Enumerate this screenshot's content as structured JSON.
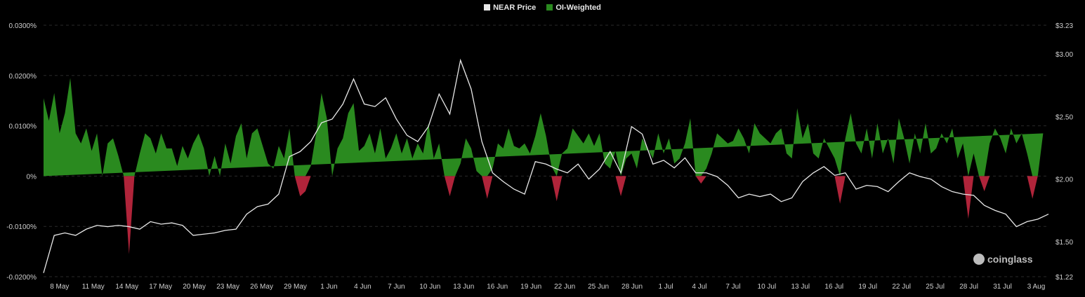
{
  "legend": {
    "price_label": "NEAR Price",
    "funding_label": "OI-Weighted"
  },
  "watermark": "coinglass",
  "colors": {
    "background": "#000000",
    "positive": "#2a8a1f",
    "negative": "#b0243a",
    "price_line": "#e8e8e8",
    "grid": "#2a2a2a"
  },
  "chart_data": {
    "type": "area",
    "grid": true,
    "legend_position": "top-center",
    "x_tick_labels": [
      "8 May",
      "11 May",
      "14 May",
      "17 May",
      "20 May",
      "23 May",
      "26 May",
      "29 May",
      "1 Jun",
      "4 Jun",
      "7 Jun",
      "10 Jun",
      "13 Jun",
      "16 Jun",
      "19 Jun",
      "22 Jun",
      "25 Jun",
      "28 Jun",
      "1 Jul",
      "4 Jul",
      "7 Jul",
      "10 Jul",
      "13 Jul",
      "16 Jul",
      "19 Jul",
      "22 Jul",
      "25 Jul",
      "28 Jul",
      "31 Jul",
      "3 Aug"
    ],
    "y_left": {
      "ticks": [
        "0.0300%",
        "0.0200%",
        "0.0100%",
        "0%",
        "-0.0100%",
        "-0.0200%"
      ],
      "range": [
        -0.02,
        0.03
      ]
    },
    "y_right": {
      "ticks": [
        "$3.23",
        "$3.00",
        "$2.50",
        "$2.00",
        "$1.50",
        "$1.22"
      ],
      "range": [
        1.22,
        3.23
      ]
    },
    "series": [
      {
        "name": "OI-Weighted",
        "axis": "left",
        "unit": "%",
        "day_offset": [
          0,
          0.5,
          1,
          1.5,
          2,
          2.5,
          3,
          3.5,
          4,
          4.5,
          5,
          5.5,
          6,
          6.5,
          7,
          7.5,
          8,
          8.5,
          9,
          9.5,
          10,
          10.5,
          11,
          11.5,
          12,
          12.5,
          13,
          13.5,
          14,
          14.5,
          15,
          15.5,
          16,
          16.5,
          17,
          17.5,
          18,
          18.5,
          19,
          19.5,
          20,
          20.5,
          21,
          21.5,
          22,
          22.5,
          23,
          23.5,
          24,
          24.5,
          25,
          25.5,
          26,
          26.5,
          27,
          27.5,
          28,
          28.5,
          29,
          29.5,
          30,
          30.5,
          31,
          31.5,
          32,
          32.5,
          33,
          33.5,
          34,
          34.5,
          35,
          35.5,
          36,
          36.5,
          37,
          37.5,
          38,
          38.5,
          39,
          39.5,
          40,
          40.5,
          41,
          41.5,
          42,
          42.5,
          43,
          43.5,
          44,
          44.5,
          45,
          45.5,
          46,
          46.5,
          47,
          47.5,
          48,
          48.5,
          49,
          49.5,
          50,
          50.5,
          51,
          51.5,
          52,
          52.5,
          53,
          53.5,
          54,
          54.5,
          55,
          55.5,
          56,
          56.5,
          57,
          57.5,
          58,
          58.5,
          59,
          59.5,
          60,
          60.5,
          61,
          61.5,
          62,
          62.5,
          63,
          63.5,
          64,
          64.5,
          65,
          65.5,
          66,
          66.5,
          67,
          67.5,
          68,
          68.5,
          69,
          69.5,
          70,
          70.5,
          71,
          71.5,
          72,
          72.5,
          73,
          73.5,
          74,
          74.5,
          75,
          75.5,
          76,
          76.5,
          77,
          77.5,
          78,
          78.5,
          79,
          79.5,
          80,
          80.5,
          81,
          81.5,
          82,
          82.5,
          83,
          83.5,
          84,
          84.5,
          85,
          85.5,
          86,
          86.5,
          87,
          87.5,
          88,
          88.5,
          89,
          89.5,
          90,
          90.5,
          91,
          91.5,
          92,
          92.5,
          93,
          93.5
        ],
        "values": [
          0.0155,
          0.011,
          0.0165,
          0.0085,
          0.0125,
          0.0195,
          0.0085,
          0.0065,
          0.0095,
          0.005,
          0.0085,
          0.0,
          0.0065,
          0.0075,
          0.004,
          0.0,
          -0.0155,
          0.0,
          0.0045,
          0.0085,
          0.0075,
          0.0045,
          0.0085,
          0.0055,
          0.0055,
          0.002,
          0.006,
          0.0035,
          0.0065,
          0.0085,
          0.0055,
          0.0,
          0.004,
          0.0,
          0.0065,
          0.0025,
          0.008,
          0.0105,
          0.0035,
          0.0085,
          0.0095,
          0.006,
          0.0025,
          0.0015,
          0.006,
          0.0035,
          0.0095,
          0.0,
          -0.004,
          -0.003,
          0.002,
          0.0085,
          0.0165,
          0.0115,
          0.0,
          0.0055,
          0.0075,
          0.0125,
          0.0145,
          0.005,
          0.006,
          0.0085,
          0.0045,
          0.0095,
          0.0035,
          0.0055,
          0.0085,
          0.0045,
          0.0075,
          0.0035,
          0.0065,
          0.0045,
          0.0105,
          0.0035,
          0.0065,
          0.0,
          -0.004,
          0.0,
          0.0025,
          0.0075,
          0.0055,
          0.001,
          0.0,
          -0.0045,
          0.0015,
          0.0065,
          0.0055,
          0.0095,
          0.006,
          0.0055,
          0.0065,
          0.0045,
          0.008,
          0.0125,
          0.008,
          0.002,
          -0.005,
          0.0045,
          0.0055,
          0.0095,
          0.008,
          0.0065,
          0.0085,
          0.006,
          0.0085,
          0.0025,
          0.0015,
          0.005,
          -0.004,
          0.0035,
          0.0045,
          0.0015,
          0.0075,
          0.0055,
          0.0035,
          0.0085,
          0.0045,
          0.0075,
          0.0025,
          0.0035,
          0.0065,
          0.0115,
          0.0,
          -0.0015,
          0.0015,
          0.0045,
          0.0085,
          0.0075,
          0.0065,
          0.007,
          0.0095,
          0.0075,
          0.0045,
          0.0105,
          0.0085,
          0.0075,
          0.0065,
          0.0085,
          0.0095,
          0.0045,
          0.0035,
          0.0135,
          0.0075,
          0.0105,
          0.0045,
          0.0035,
          0.0075,
          0.0055,
          0.0035,
          -0.0055,
          0.0075,
          0.0125,
          0.0065,
          0.0045,
          0.0095,
          0.0035,
          0.0105,
          0.0045,
          0.0075,
          0.0025,
          0.0115,
          0.0075,
          0.0025,
          0.0085,
          0.0045,
          0.0105,
          0.0045,
          0.0055,
          0.0085,
          0.0065,
          0.0095,
          0.0035,
          0.0065,
          -0.0085,
          0.0045,
          0.0,
          -0.003,
          0.0065,
          0.0095,
          0.0075,
          0.0045,
          0.0095,
          0.0065,
          0.0085,
          0.0045,
          -0.0045,
          0.0,
          0.0085,
          -0.0075,
          0.0095,
          0.0085,
          0.0095,
          0.0085,
          0.0075
        ]
      },
      {
        "name": "NEAR Price",
        "axis": "right",
        "unit": "$",
        "day_offset": [
          0,
          1,
          2,
          3,
          4,
          5,
          6,
          7,
          8,
          9,
          10,
          11,
          12,
          13,
          14,
          15,
          16,
          17,
          18,
          19,
          20,
          21,
          22,
          23,
          24,
          25,
          26,
          27,
          28,
          29,
          30,
          31,
          32,
          33,
          34,
          35,
          36,
          37,
          38,
          39,
          40,
          41,
          42,
          43,
          44,
          45,
          46,
          47,
          48,
          49,
          50,
          51,
          52,
          53,
          54,
          55,
          56,
          57,
          58,
          59,
          60,
          61,
          62,
          63,
          64,
          65,
          66,
          67,
          68,
          69,
          70,
          71,
          72,
          73,
          74,
          75,
          76,
          77,
          78,
          79,
          80,
          81,
          82,
          83,
          84,
          85,
          86,
          87,
          88,
          89,
          90,
          91,
          92,
          93,
          94
        ],
        "values": [
          1.25,
          1.55,
          1.57,
          1.55,
          1.6,
          1.63,
          1.62,
          1.63,
          1.62,
          1.6,
          1.66,
          1.64,
          1.65,
          1.63,
          1.55,
          1.56,
          1.57,
          1.59,
          1.6,
          1.72,
          1.78,
          1.8,
          1.88,
          2.18,
          2.22,
          2.3,
          2.45,
          2.48,
          2.6,
          2.8,
          2.6,
          2.58,
          2.65,
          2.48,
          2.35,
          2.3,
          2.42,
          2.68,
          2.52,
          2.95,
          2.72,
          2.3,
          2.05,
          1.98,
          1.92,
          1.88,
          2.14,
          2.12,
          2.08,
          2.05,
          2.12,
          2.0,
          2.08,
          2.22,
          2.05,
          2.42,
          2.36,
          2.12,
          2.15,
          2.09,
          2.17,
          2.05,
          2.05,
          2.02,
          1.95,
          1.85,
          1.88,
          1.86,
          1.88,
          1.82,
          1.85,
          1.98,
          2.05,
          2.1,
          2.03,
          2.05,
          1.92,
          1.95,
          1.94,
          1.9,
          1.98,
          2.05,
          2.02,
          2.0,
          1.94,
          1.9,
          1.88,
          1.87,
          1.79,
          1.75,
          1.72,
          1.62,
          1.66,
          1.68,
          1.72
        ]
      }
    ]
  }
}
